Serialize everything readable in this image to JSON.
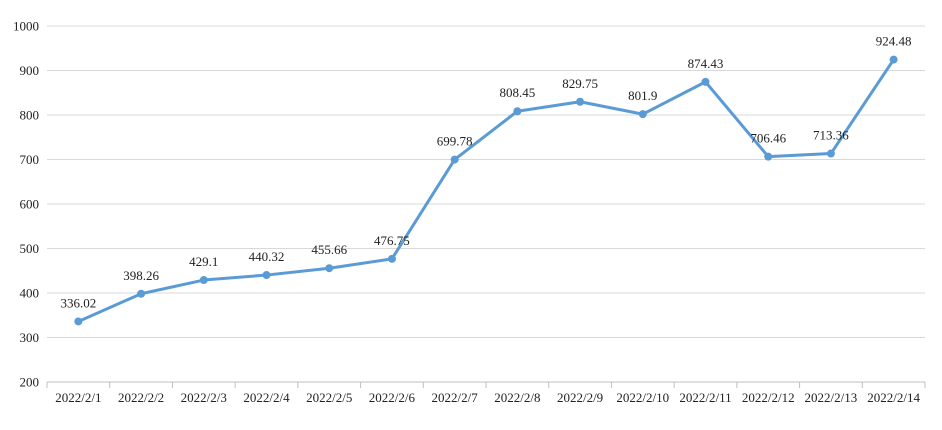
{
  "chart_data": {
    "type": "line",
    "title": "",
    "xlabel": "",
    "ylabel": "",
    "categories": [
      "2022/2/1",
      "2022/2/2",
      "2022/2/3",
      "2022/2/4",
      "2022/2/5",
      "2022/2/6",
      "2022/2/7",
      "2022/2/8",
      "2022/2/9",
      "2022/2/10",
      "2022/2/11",
      "2022/2/12",
      "2022/2/13",
      "2022/2/14"
    ],
    "series": [
      {
        "values": [
          336.02,
          398.26,
          429.1,
          440.32,
          455.66,
          476.75,
          699.78,
          808.45,
          829.75,
          801.9,
          874.43,
          706.46,
          713.36,
          924.48
        ],
        "data_labels": [
          "336.02",
          "398.26",
          "429.1",
          "440.32",
          "455.66",
          "476.75",
          "699.78",
          "808.45",
          "829.75",
          "801.9",
          "874.43",
          "706.46",
          "713.36",
          "924.48"
        ],
        "color": "#5B9BD5"
      }
    ],
    "ylim": [
      200,
      1000
    ],
    "y_ticks": [
      "200",
      "300",
      "400",
      "500",
      "600",
      "700",
      "800",
      "900",
      "1000"
    ],
    "grid": "horizontal",
    "legend": "none"
  },
  "colors": {
    "line": "#5B9BD5",
    "grid": "#D9D9D9",
    "axis": "#BFBFBF",
    "text": "#222222"
  }
}
